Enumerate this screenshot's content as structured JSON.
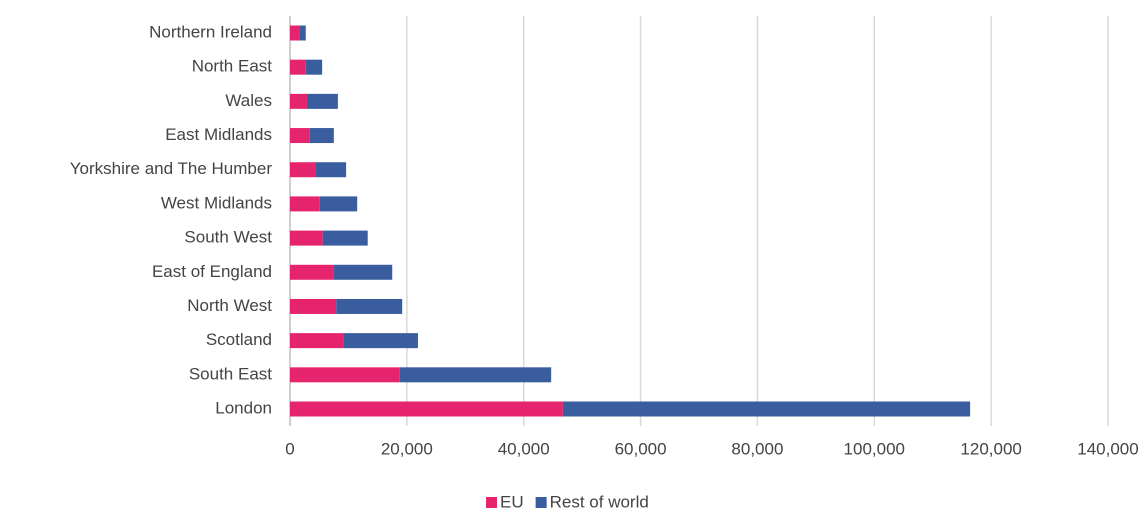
{
  "chart_data": {
    "type": "stacked-barh",
    "categories": [
      "Northern Ireland",
      "North East",
      "Wales",
      "East Midlands",
      "Yorkshire and The Humber",
      "West Midlands",
      "South West",
      "East of England",
      "North West",
      "Scotland",
      "South East",
      "London"
    ],
    "series": [
      {
        "name": "EU",
        "color": "#e6246e",
        "values": [
          1700,
          2700,
          2900,
          3400,
          4300,
          5100,
          5600,
          7400,
          7900,
          9100,
          18800,
          46700
        ]
      },
      {
        "name": "Rest of world",
        "color": "#3a5da0",
        "values": [
          1000,
          2800,
          5300,
          4100,
          5300,
          6400,
          7700,
          10100,
          11300,
          12800,
          25900,
          69700
        ]
      }
    ],
    "xlim": [
      0,
      140000
    ],
    "xticks": [
      0,
      {
        "value": 20000,
        "label": "20,000"
      },
      {
        "value": 40000,
        "label": "40,000"
      },
      {
        "value": 60000,
        "label": "60,000"
      },
      {
        "value": 80000,
        "label": "80,000"
      },
      {
        "value": 100000,
        "label": "100,000"
      },
      {
        "value": 120000,
        "label": "120,000"
      },
      {
        "value": 140000,
        "label": "140,000"
      }
    ],
    "grid": true,
    "legend": "bottom"
  }
}
